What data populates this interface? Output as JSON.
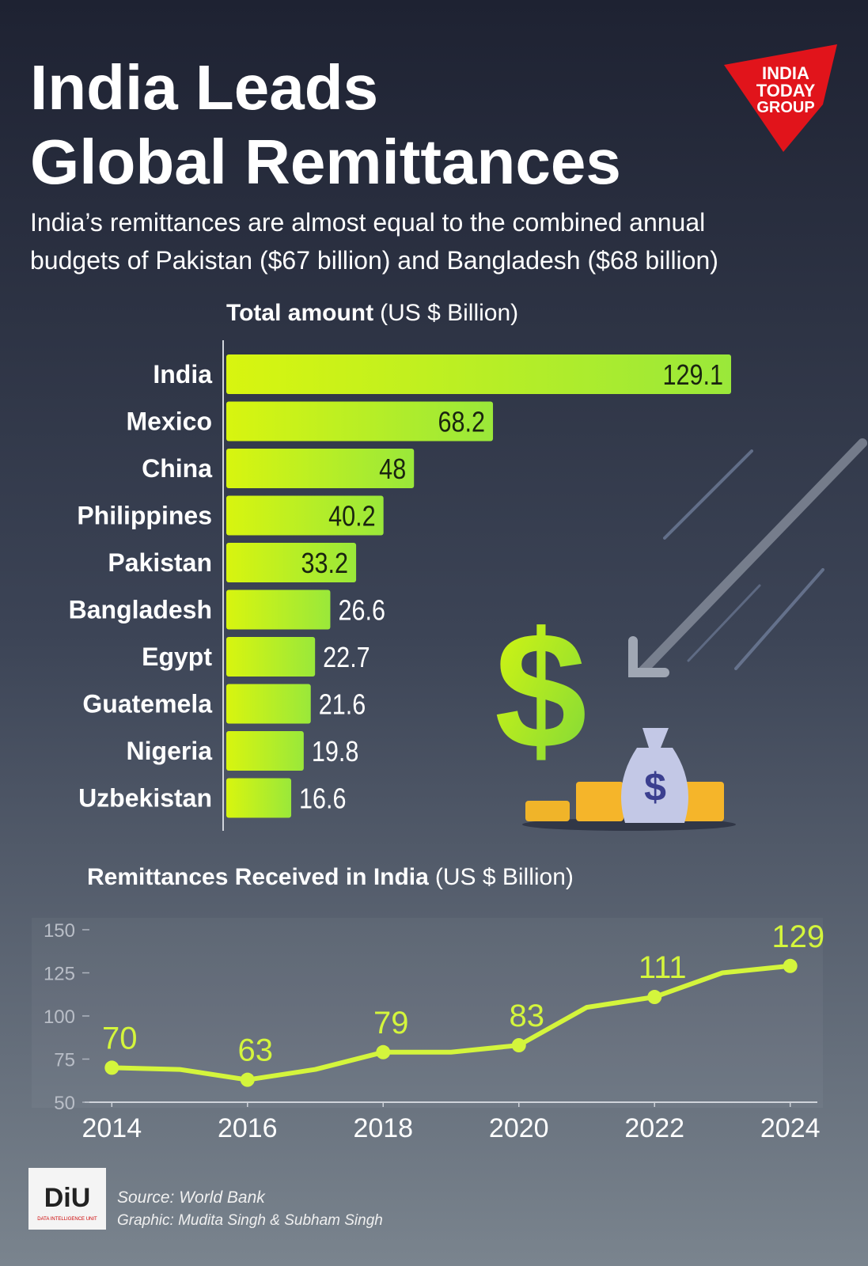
{
  "title_lines": [
    "India Leads",
    "Global Remittances"
  ],
  "subtitle_lines": [
    "India’s remittances are almost equal to the combined annual",
    "budgets of Pakistan ($67 billion) and Bangladesh ($68 billion)"
  ],
  "logo_lines": [
    "INDIA",
    "TODAY",
    "GROUP"
  ],
  "icon_symbol": "$",
  "chart_data": [
    {
      "type": "hbar",
      "title": "Total amount",
      "unit": "(US $ Billion)",
      "categories": [
        "India",
        "Mexico",
        "China",
        "Philippines",
        "Pakistan",
        "Bangladesh",
        "Egypt",
        "Guatemela",
        "Nigeria",
        "Uzbekistan"
      ],
      "values": [
        129.1,
        68.2,
        48,
        40.2,
        33.2,
        26.6,
        22.7,
        21.6,
        19.8,
        16.6
      ],
      "color": "#c6f21a"
    },
    {
      "type": "line",
      "title": "Remittances Received in India",
      "unit": "(US $ Billion)",
      "x": [
        2014,
        2015,
        2016,
        2017,
        2018,
        2019,
        2020,
        2021,
        2022,
        2023,
        2024
      ],
      "series": [
        {
          "values": [
            70,
            69,
            63,
            69,
            79,
            79,
            83,
            105,
            111,
            125,
            129
          ],
          "color": "#d4f53c"
        }
      ],
      "xlim": [
        2013.6,
        2024.4
      ],
      "xticks": [
        2014,
        2016,
        2018,
        2020,
        2022,
        2024
      ],
      "ylim": [
        50,
        150
      ],
      "yticks": [
        50,
        75,
        100,
        125,
        150
      ]
    }
  ],
  "footer": {
    "badge": "DiU",
    "badge_caption": "DATA INTELLIGENCE UNIT",
    "source": "Source: World Bank",
    "credit": "Graphic: Mudita Singh & Subham Singh"
  }
}
